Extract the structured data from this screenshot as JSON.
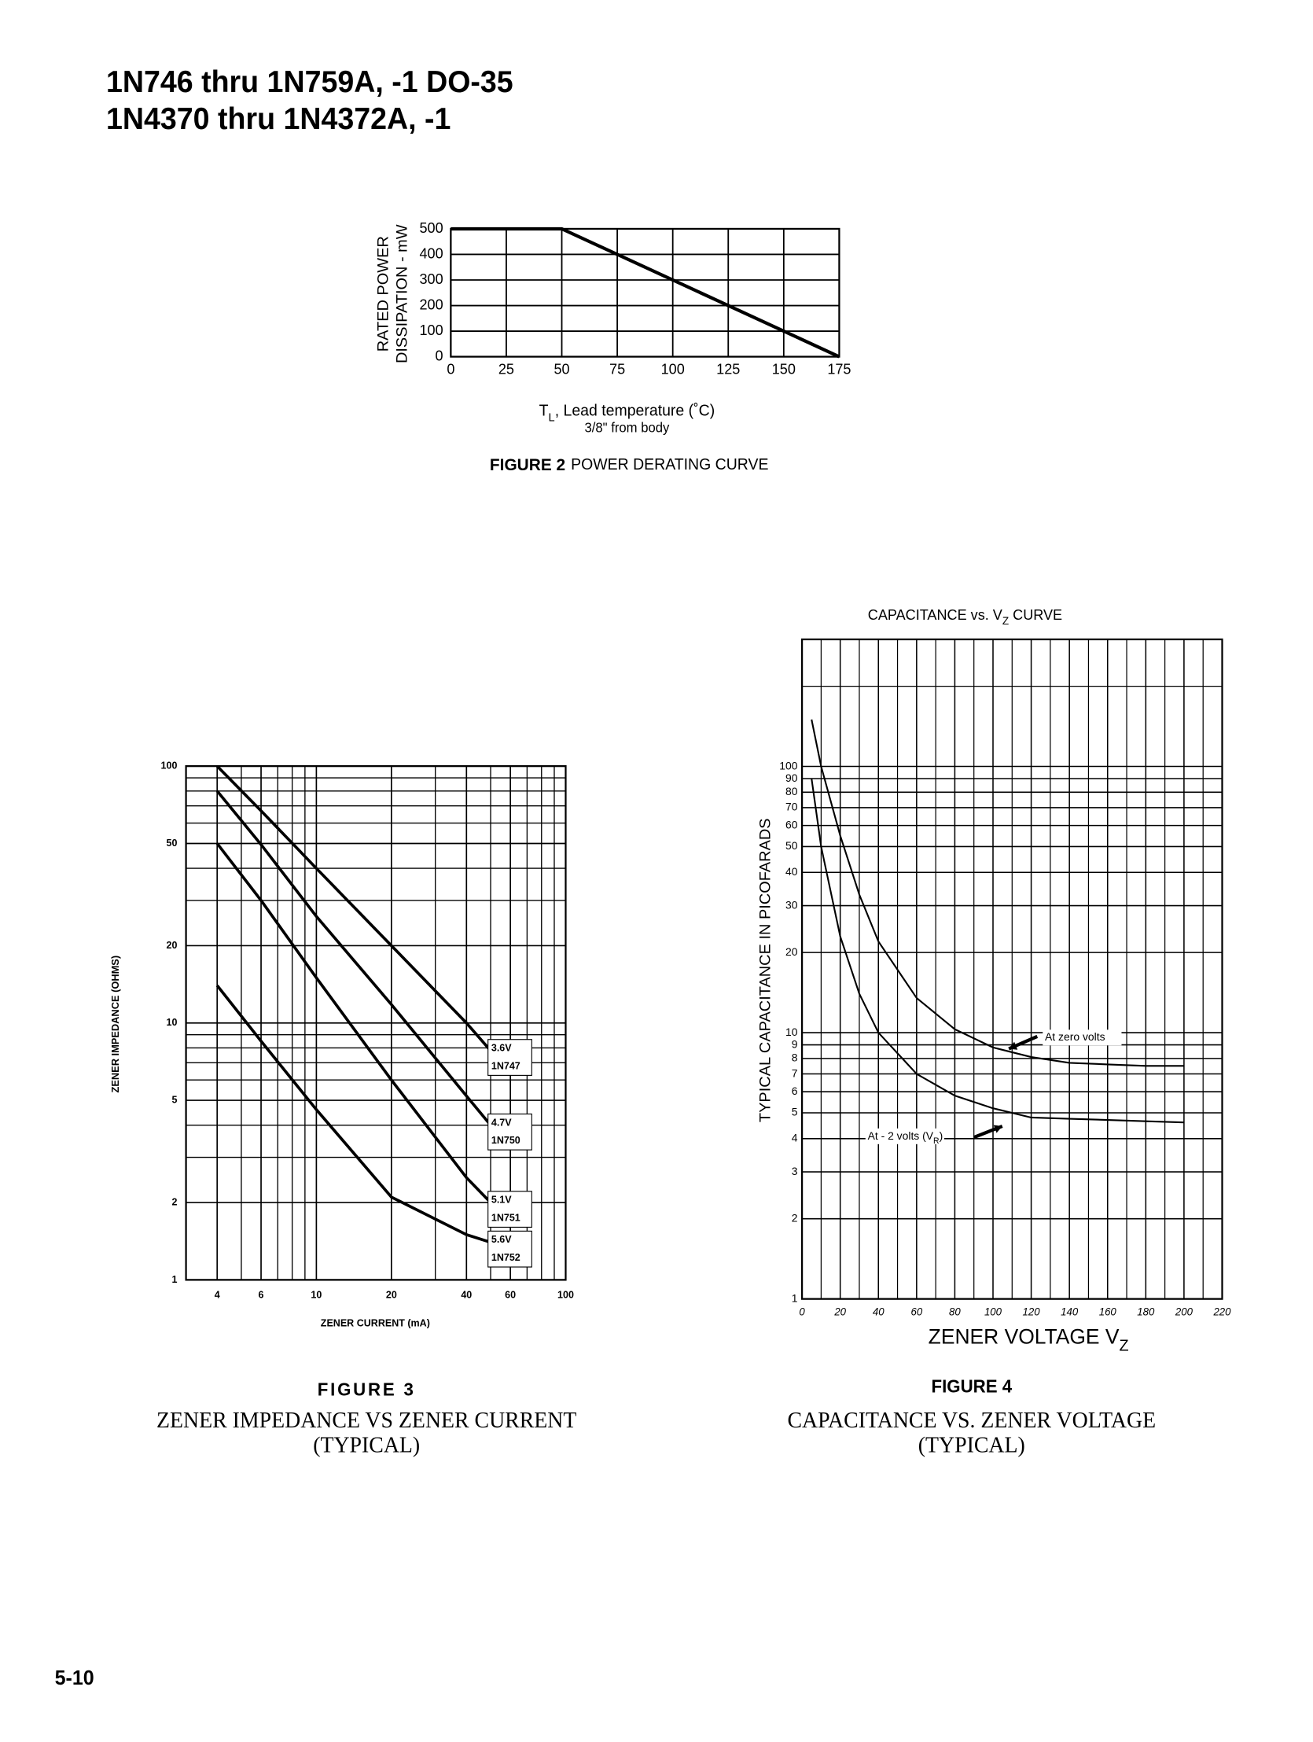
{
  "header": {
    "line1": "1N746 thru 1N759A, -1 DO-35",
    "line2": "1N4370 thru 1N4372A, -1"
  },
  "page_number": "5-10",
  "chart_data": [
    {
      "type": "line",
      "figure_label": "FIGURE 2",
      "caption": "POWER DERATING CURVE",
      "ylabel": "RATED POWER",
      "ylabel2": "DISSIPATION - mW",
      "xlabel": [
        "T",
        "L",
        ", Lead temperature (˚C)"
      ],
      "xlabel_note": "3/8\" from body",
      "x": [
        0,
        50,
        175
      ],
      "series": [
        {
          "color": "#000000",
          "values": [
            500,
            500,
            0
          ]
        }
      ],
      "xlim": [
        0,
        175
      ],
      "xticks": [
        0,
        25,
        50,
        75,
        100,
        125,
        150,
        175
      ],
      "ylim": [
        0,
        500
      ],
      "yticks": [
        0,
        100,
        200,
        300,
        400,
        500
      ],
      "grid": true
    },
    {
      "type": "line",
      "figure_label": "FIGURE 3",
      "caption": "ZENER IMPEDANCE VS ZENER CURRENT",
      "caption2": "(TYPICAL)",
      "ylabel": "ZENER IMPEDANCE (OHMS)",
      "xlabel": "ZENER CURRENT (mA)",
      "xscale": "log",
      "yscale": "log",
      "x": [
        4,
        6,
        10,
        20,
        40,
        50
      ],
      "series": [
        {
          "name": "3.6V",
          "device": "1N747",
          "color": "#000000",
          "values": [
            100,
            67,
            40,
            20,
            10,
            7.8
          ]
        },
        {
          "name": "4.7V",
          "device": "1N750",
          "color": "#000000",
          "values": [
            80,
            49.5,
            26,
            11.8,
            5.2,
            4.0
          ]
        },
        {
          "name": "5.1V",
          "device": "1N751",
          "color": "#000000",
          "values": [
            50,
            30,
            15,
            6.0,
            2.5,
            2.0
          ]
        },
        {
          "name": "5.6V",
          "device": "1N752",
          "color": "#000000",
          "values": [
            14,
            8.5,
            4.6,
            2.1,
            1.5,
            1.4
          ]
        }
      ],
      "xlim": [
        3,
        100
      ],
      "xticks": [
        4,
        6,
        10,
        20,
        40,
        60,
        100
      ],
      "ylim": [
        1,
        100
      ],
      "yticks": [
        1,
        2,
        5,
        10,
        20,
        50,
        100
      ],
      "grid": true,
      "minor_grid": true
    },
    {
      "type": "line",
      "title": [
        "CAPACITANCE vs. V",
        "Z",
        " CURVE"
      ],
      "figure_label": "FIGURE 4",
      "caption": "CAPACITANCE VS. ZENER VOLTAGE",
      "caption2": "(TYPICAL)",
      "ylabel": "TYPICAL CAPACITANCE IN PICOFARADS",
      "xlabel": [
        "ZENER VOLTAGE V",
        "Z"
      ],
      "yscale": "log",
      "x": [
        5,
        10,
        20,
        30,
        40,
        60,
        80,
        100,
        120,
        140,
        160,
        180,
        200
      ],
      "series": [
        {
          "name": "At zero volts",
          "color": "#000000",
          "values": [
            150,
            100,
            55,
            33,
            22,
            13.5,
            10.3,
            8.8,
            8.1,
            7.7,
            7.6,
            7.5,
            7.5
          ]
        },
        {
          "name": [
            "At - 2 volts (V",
            "R",
            ")"
          ],
          "color": "#000000",
          "values": [
            90,
            50,
            23,
            14,
            10,
            7,
            5.8,
            5.2,
            4.8,
            4.75,
            4.7,
            4.65,
            4.6
          ]
        }
      ],
      "xlim": [
        0,
        220
      ],
      "xticks": [
        0,
        20,
        40,
        60,
        80,
        100,
        120,
        140,
        160,
        180,
        200,
        220
      ],
      "ylim": [
        1,
        300
      ],
      "yticks": [
        1,
        2,
        3,
        4,
        5,
        6,
        7,
        8,
        9,
        10,
        20,
        30,
        40,
        50,
        60,
        70,
        80,
        90,
        100
      ],
      "grid": true,
      "minor_grid": true
    }
  ]
}
